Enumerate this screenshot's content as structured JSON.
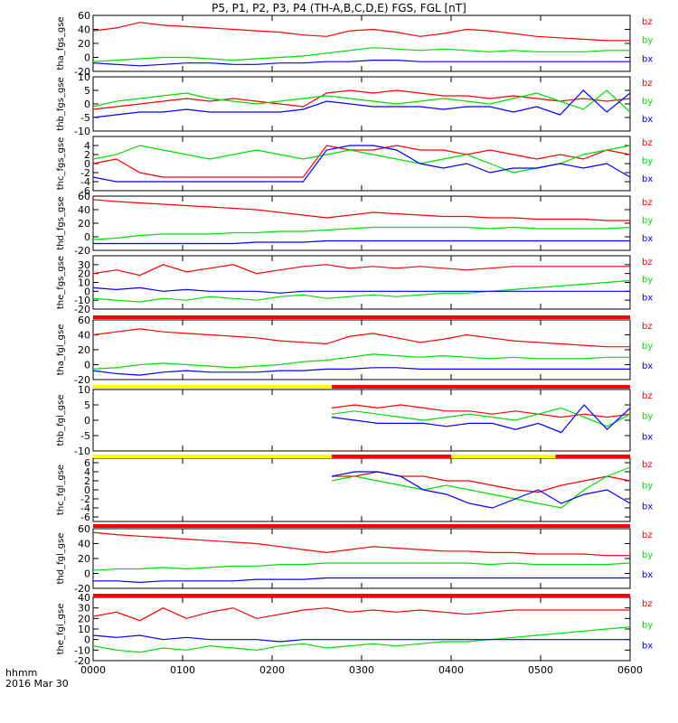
{
  "title": "P5, P1, P2, P3, P4 (TH-A,B,C,D,E) FGS, FGL [nT]",
  "footer": {
    "time_unit": "hhmm",
    "date": "2016 Mar 30"
  },
  "colors": {
    "bz": "#ff0000",
    "by": "#00dd00",
    "bx": "#0000ff",
    "flag_yellow": "#ffff00",
    "flag_red": "#ff0000",
    "flag_black": "#000000"
  },
  "chart_data": [
    {
      "type": "line",
      "ylabel": "tha_fgs_gse",
      "ylim": [
        -20,
        60
      ],
      "yticks": [
        -20,
        0,
        20,
        40,
        60
      ],
      "xlim": [
        "0000",
        "0600"
      ],
      "xticks": [
        "0000",
        "0100",
        "0200",
        "0300",
        "0400",
        "0500",
        "0600"
      ],
      "series": [
        {
          "name": "bz",
          "start": "0000",
          "end": "0600",
          "values": [
            38,
            42,
            50,
            46,
            44,
            42,
            40,
            38,
            36,
            32,
            30,
            38,
            40,
            36,
            30,
            34,
            40,
            38,
            34,
            30,
            28,
            26,
            24,
            24
          ]
        },
        {
          "name": "by",
          "start": "0000",
          "end": "0600",
          "values": [
            -6,
            -4,
            -2,
            0,
            0,
            -2,
            -4,
            -2,
            0,
            2,
            6,
            10,
            14,
            12,
            10,
            12,
            10,
            8,
            10,
            8,
            8,
            8,
            10,
            10
          ]
        },
        {
          "name": "bx",
          "start": "0000",
          "end": "0600",
          "values": [
            -8,
            -10,
            -12,
            -10,
            -8,
            -8,
            -10,
            -10,
            -8,
            -8,
            -6,
            -6,
            -4,
            -4,
            -6,
            -6,
            -6,
            -6,
            -6,
            -6,
            -6,
            -6,
            -6,
            -6
          ]
        }
      ]
    },
    {
      "type": "line",
      "ylabel": "thb_fgs_gse",
      "ylim": [
        -10,
        10
      ],
      "yticks": [
        -10,
        -5,
        0,
        5,
        10
      ],
      "xlim": [
        "0000",
        "0600"
      ],
      "xticks": [
        "0000",
        "0100",
        "0200",
        "0300",
        "0400",
        "0500",
        "0600"
      ],
      "series": [
        {
          "name": "bz",
          "start": "0000",
          "end": "0600",
          "values": [
            -2,
            -1,
            0,
            1,
            2,
            1,
            2,
            1,
            0,
            -1,
            4,
            5,
            4,
            5,
            4,
            3,
            3,
            2,
            3,
            2,
            1,
            2,
            1,
            2
          ]
        },
        {
          "name": "by",
          "start": "0000",
          "end": "0600",
          "values": [
            -1,
            1,
            2,
            3,
            4,
            2,
            1,
            0,
            1,
            2,
            3,
            2,
            1,
            0,
            1,
            2,
            1,
            0,
            2,
            4,
            1,
            -2,
            5,
            -3
          ]
        },
        {
          "name": "bx",
          "start": "0000",
          "end": "0600",
          "values": [
            -5,
            -4,
            -3,
            -3,
            -2,
            -3,
            -3,
            -3,
            -3,
            -2,
            1,
            0,
            -1,
            -1,
            -1,
            -2,
            -1,
            -1,
            -3,
            -1,
            -4,
            5,
            -3,
            4
          ]
        }
      ]
    },
    {
      "type": "line",
      "ylabel": "thc_fgs_gse",
      "ylim": [
        -6,
        6
      ],
      "yticks": [
        -6,
        -4,
        -2,
        0,
        2,
        4
      ],
      "xlim": [
        "0000",
        "0600"
      ],
      "xticks": [
        "0000",
        "0100",
        "0200",
        "0300",
        "0400",
        "0500",
        "0600"
      ],
      "series": [
        {
          "name": "bz",
          "start": "0000",
          "end": "0600",
          "values": [
            0,
            1,
            -2,
            -3,
            -3,
            -3,
            -3,
            -3,
            -3,
            -3,
            4,
            3,
            3,
            4,
            3,
            3,
            2,
            3,
            2,
            1,
            2,
            1,
            3,
            2
          ]
        },
        {
          "name": "by",
          "start": "0000",
          "end": "0600",
          "values": [
            1,
            2,
            4,
            3,
            2,
            1,
            2,
            3,
            2,
            1,
            2,
            3,
            2,
            1,
            0,
            1,
            2,
            0,
            -2,
            -1,
            0,
            2,
            3,
            4
          ]
        },
        {
          "name": "bx",
          "start": "0000",
          "end": "0600",
          "values": [
            -3,
            -4,
            -4,
            -4,
            -4,
            -4,
            -4,
            -4,
            -4,
            -4,
            3,
            4,
            4,
            3,
            0,
            -1,
            0,
            -2,
            -1,
            -1,
            0,
            -1,
            0,
            -3
          ]
        }
      ]
    },
    {
      "type": "line",
      "ylabel": "thd_fgs_gse",
      "ylim": [
        -20,
        60
      ],
      "yticks": [
        -20,
        0,
        20,
        40,
        60
      ],
      "xlim": [
        "0000",
        "0600"
      ],
      "xticks": [
        "0000",
        "0100",
        "0200",
        "0300",
        "0400",
        "0500",
        "0600"
      ],
      "series": [
        {
          "name": "bz",
          "start": "0000",
          "end": "0600",
          "values": [
            55,
            52,
            50,
            48,
            46,
            44,
            42,
            40,
            36,
            32,
            28,
            32,
            36,
            34,
            32,
            30,
            30,
            28,
            28,
            26,
            26,
            26,
            24,
            24
          ]
        },
        {
          "name": "by",
          "start": "0000",
          "end": "0600",
          "values": [
            -4,
            -2,
            2,
            4,
            4,
            4,
            6,
            6,
            8,
            8,
            10,
            12,
            14,
            14,
            14,
            14,
            14,
            12,
            14,
            12,
            12,
            12,
            12,
            14
          ]
        },
        {
          "name": "bx",
          "start": "0000",
          "end": "0600",
          "values": [
            -10,
            -10,
            -10,
            -10,
            -10,
            -10,
            -10,
            -8,
            -8,
            -8,
            -6,
            -6,
            -6,
            -6,
            -6,
            -6,
            -6,
            -6,
            -6,
            -6,
            -6,
            -6,
            -6,
            -6
          ]
        }
      ]
    },
    {
      "type": "line",
      "ylabel": "the_fgs_gse",
      "ylim": [
        -20,
        40
      ],
      "yticks": [
        -20,
        -10,
        0,
        10,
        20,
        30
      ],
      "xlim": [
        "0000",
        "0600"
      ],
      "xticks": [
        "0000",
        "0100",
        "0200",
        "0300",
        "0400",
        "0500",
        "0600"
      ],
      "series": [
        {
          "name": "bz",
          "start": "0000",
          "end": "0600",
          "values": [
            20,
            24,
            18,
            30,
            22,
            26,
            30,
            20,
            24,
            28,
            30,
            26,
            28,
            26,
            28,
            26,
            24,
            26,
            28,
            28,
            28,
            28,
            28,
            28
          ]
        },
        {
          "name": "by",
          "start": "0000",
          "end": "0600",
          "values": [
            -8,
            -10,
            -12,
            -8,
            -10,
            -6,
            -8,
            -10,
            -6,
            -4,
            -8,
            -6,
            -4,
            -6,
            -4,
            -2,
            -2,
            0,
            2,
            4,
            6,
            8,
            10,
            12
          ]
        },
        {
          "name": "bx",
          "start": "0000",
          "end": "0600",
          "values": [
            4,
            2,
            4,
            0,
            2,
            0,
            0,
            0,
            -2,
            0,
            0,
            0,
            0,
            0,
            0,
            0,
            0,
            0,
            0,
            0,
            0,
            0,
            0,
            0
          ]
        }
      ]
    },
    {
      "type": "line",
      "ylabel": "tha_fgl_gse",
      "ylim": [
        -20,
        60
      ],
      "yticks": [
        -20,
        0,
        20,
        40,
        60
      ],
      "xlim": [
        "0000",
        "0600"
      ],
      "xticks": [
        "0000",
        "0100",
        "0200",
        "0300",
        "0400",
        "0500",
        "0600"
      ],
      "series": [
        {
          "name": "bz",
          "start": "0000",
          "end": "0600",
          "values": [
            40,
            44,
            48,
            44,
            42,
            40,
            38,
            36,
            32,
            30,
            28,
            38,
            42,
            36,
            30,
            34,
            40,
            36,
            32,
            30,
            28,
            26,
            24,
            24
          ]
        },
        {
          "name": "by",
          "start": "0000",
          "end": "0600",
          "values": [
            -6,
            -4,
            0,
            2,
            0,
            -2,
            -4,
            -2,
            0,
            4,
            6,
            10,
            14,
            12,
            10,
            12,
            10,
            8,
            10,
            8,
            8,
            8,
            10,
            10
          ]
        },
        {
          "name": "bx",
          "start": "0000",
          "end": "0600",
          "values": [
            -8,
            -12,
            -14,
            -10,
            -8,
            -10,
            -10,
            -10,
            -8,
            -8,
            -6,
            -6,
            -4,
            -4,
            -6,
            -6,
            -6,
            -6,
            -6,
            -6,
            -6,
            -6,
            -6,
            -6
          ]
        }
      ]
    },
    {
      "type": "line",
      "ylabel": "thb_fgl_gse",
      "ylim": [
        -10,
        10
      ],
      "yticks": [
        -10,
        -5,
        0,
        5,
        10
      ],
      "xlim": [
        "0000",
        "0600"
      ],
      "xticks": [
        "0000",
        "0100",
        "0200",
        "0300",
        "0400",
        "0500",
        "0600"
      ],
      "series": [
        {
          "name": "bz",
          "start": "0240",
          "end": "0600",
          "values": [
            4,
            5,
            4,
            5,
            4,
            3,
            3,
            2,
            3,
            2,
            1,
            2,
            1,
            2
          ]
        },
        {
          "name": "by",
          "start": "0240",
          "end": "0600",
          "values": [
            2,
            3,
            2,
            1,
            0,
            1,
            2,
            1,
            0,
            2,
            4,
            1,
            -2,
            2
          ]
        },
        {
          "name": "bx",
          "start": "0240",
          "end": "0600",
          "values": [
            1,
            0,
            -1,
            -1,
            -1,
            -2,
            -1,
            -1,
            -3,
            -1,
            -4,
            5,
            -3,
            4
          ]
        }
      ]
    },
    {
      "type": "line",
      "ylabel": "thc_fgl_gse",
      "ylim": [
        -7,
        7
      ],
      "yticks": [
        -6,
        -4,
        -2,
        0,
        2,
        4,
        6
      ],
      "xlim": [
        "0000",
        "0600"
      ],
      "xticks": [
        "0000",
        "0100",
        "0200",
        "0300",
        "0400",
        "0500",
        "0600"
      ],
      "series": [
        {
          "name": "bz",
          "start": "0240",
          "end": "0600",
          "values": [
            3,
            3,
            4,
            3,
            3,
            2,
            2,
            1,
            0,
            -0.5,
            1,
            2,
            3,
            2
          ]
        },
        {
          "name": "by",
          "start": "0240",
          "end": "0600",
          "values": [
            2,
            3,
            2,
            1,
            0,
            1,
            0,
            -1,
            -2,
            -3,
            -4,
            0,
            3,
            5
          ]
        },
        {
          "name": "bx",
          "start": "0240",
          "end": "0600",
          "values": [
            3,
            4,
            4,
            3,
            0,
            -1,
            -3,
            -4,
            -2,
            0,
            -3,
            -1,
            0,
            -3
          ]
        }
      ]
    },
    {
      "type": "line",
      "ylabel": "thd_fgl_gse",
      "ylim": [
        -20,
        60
      ],
      "yticks": [
        -20,
        0,
        20,
        40,
        60
      ],
      "xlim": [
        "0000",
        "0600"
      ],
      "xticks": [
        "0000",
        "0100",
        "0200",
        "0300",
        "0400",
        "0500",
        "0600"
      ],
      "series": [
        {
          "name": "bz",
          "start": "0000",
          "end": "0600",
          "values": [
            55,
            52,
            50,
            48,
            46,
            44,
            42,
            40,
            36,
            32,
            28,
            32,
            36,
            34,
            32,
            30,
            30,
            28,
            28,
            26,
            26,
            26,
            24,
            24
          ]
        },
        {
          "name": "by",
          "start": "0000",
          "end": "0600",
          "values": [
            4,
            6,
            6,
            8,
            6,
            8,
            10,
            10,
            12,
            12,
            14,
            14,
            14,
            14,
            14,
            14,
            14,
            12,
            14,
            12,
            12,
            12,
            12,
            14
          ]
        },
        {
          "name": "bx",
          "start": "0000",
          "end": "0600",
          "values": [
            -10,
            -10,
            -12,
            -10,
            -10,
            -10,
            -10,
            -8,
            -8,
            -8,
            -6,
            -6,
            -6,
            -6,
            -6,
            -6,
            -6,
            -6,
            -6,
            -6,
            -6,
            -6,
            -6,
            -6
          ]
        }
      ]
    },
    {
      "type": "line",
      "ylabel": "the_fgl_gse",
      "ylim": [
        -20,
        40
      ],
      "yticks": [
        -20,
        -10,
        0,
        10,
        20,
        30,
        40
      ],
      "xlim": [
        "0000",
        "0600"
      ],
      "xticks": [
        "0000",
        "0100",
        "0200",
        "0300",
        "0400",
        "0500",
        "0600"
      ],
      "series": [
        {
          "name": "bz",
          "start": "0000",
          "end": "0600",
          "values": [
            22,
            26,
            18,
            30,
            20,
            26,
            30,
            20,
            24,
            28,
            30,
            26,
            28,
            26,
            28,
            26,
            24,
            26,
            28,
            28,
            28,
            28,
            28,
            28
          ]
        },
        {
          "name": "by",
          "start": "0000",
          "end": "0600",
          "values": [
            -6,
            -10,
            -12,
            -8,
            -10,
            -6,
            -8,
            -10,
            -6,
            -4,
            -8,
            -6,
            -4,
            -6,
            -4,
            -2,
            -2,
            0,
            2,
            4,
            6,
            8,
            10,
            12
          ]
        },
        {
          "name": "bx",
          "start": "0000",
          "end": "0600",
          "values": [
            4,
            2,
            4,
            0,
            2,
            0,
            0,
            0,
            -2,
            0,
            0,
            0,
            0,
            0,
            0,
            0,
            0,
            0,
            0,
            0,
            0,
            0,
            0,
            0
          ]
        }
      ]
    }
  ],
  "flag_bars": [
    {
      "segments": [
        {
          "start": "0000",
          "end": "0600",
          "color": "red"
        }
      ]
    },
    {
      "segments": [
        {
          "start": "0000",
          "end": "0240",
          "color": "yellow"
        },
        {
          "start": "0240",
          "end": "0600",
          "color": "red"
        }
      ]
    },
    {
      "segments": [
        {
          "start": "0000",
          "end": "0240",
          "color": "yellow"
        },
        {
          "start": "0240",
          "end": "0400",
          "color": "red"
        },
        {
          "start": "0400",
          "end": "0510",
          "color": "yellow"
        },
        {
          "start": "0510",
          "end": "0600",
          "color": "red"
        }
      ]
    },
    {
      "segments": [
        {
          "start": "0000",
          "end": "0600",
          "color": "red"
        }
      ]
    },
    {
      "segments": [
        {
          "start": "0000",
          "end": "0600",
          "color": "red"
        }
      ]
    }
  ]
}
